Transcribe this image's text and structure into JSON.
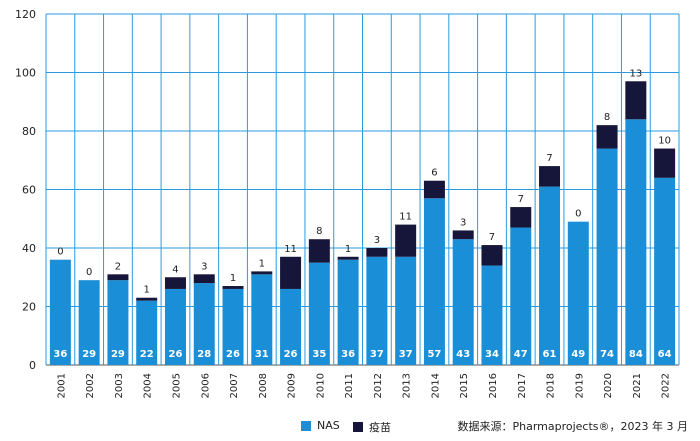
{
  "chart_data": {
    "type": "bar",
    "stacked": true,
    "categories": [
      "2001",
      "2002",
      "2003",
      "2004",
      "2005",
      "2006",
      "2007",
      "2008",
      "2009",
      "2010",
      "2011",
      "2012",
      "2013",
      "2014",
      "2015",
      "2016",
      "2017",
      "2018",
      "2019",
      "2020",
      "2021",
      "2022"
    ],
    "series": [
      {
        "name": "NAS",
        "color": "#1a8fd8",
        "values": [
          36,
          29,
          29,
          22,
          26,
          28,
          26,
          31,
          26,
          35,
          36,
          37,
          37,
          57,
          43,
          34,
          47,
          61,
          49,
          74,
          84,
          64
        ]
      },
      {
        "name": "疫苗",
        "color": "#16163a",
        "values": [
          0,
          0,
          2,
          1,
          4,
          3,
          1,
          1,
          11,
          8,
          1,
          3,
          11,
          6,
          3,
          7,
          7,
          7,
          0,
          8,
          13,
          10
        ]
      }
    ],
    "ylim": [
      0,
      120
    ],
    "yticks": [
      0,
      20,
      40,
      60,
      80,
      100,
      120
    ],
    "grid": true,
    "legend_position": "bottom"
  },
  "source_text": "数据来源：Pharmaprojects®，2023 年 3 月"
}
